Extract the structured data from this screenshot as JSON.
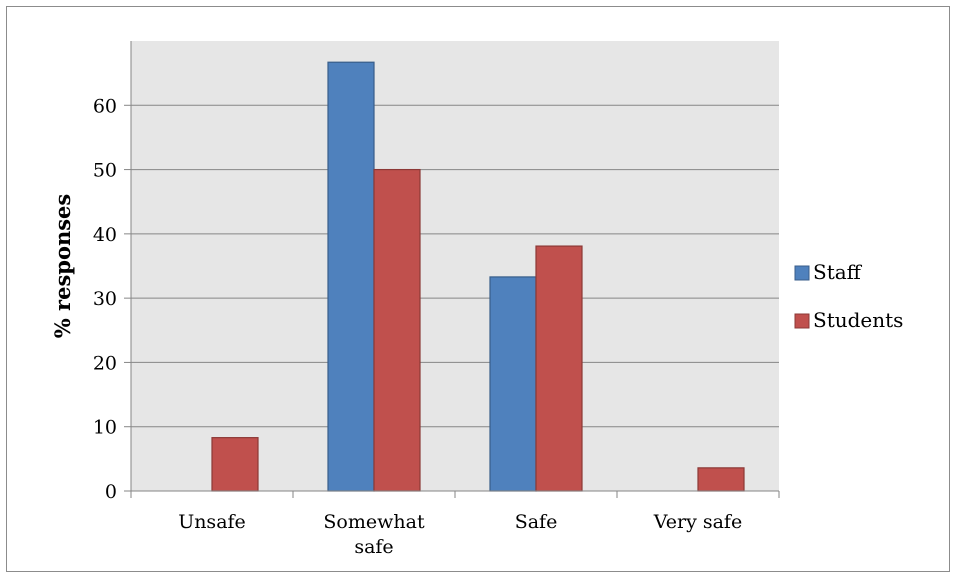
{
  "chart_data": {
    "type": "bar",
    "categories": [
      "Unsafe",
      "Somewhat safe",
      "Safe",
      "Very safe"
    ],
    "series": [
      {
        "name": "Staff",
        "values": [
          0,
          66.7,
          33.3,
          0
        ],
        "color": "#4f81bd",
        "stroke": "#385d8a"
      },
      {
        "name": "Students",
        "values": [
          8.3,
          50.0,
          38.1,
          3.6
        ],
        "color": "#c0504d",
        "stroke": "#8c3836"
      }
    ],
    "title": "",
    "xlabel": "",
    "ylabel": "% responses",
    "ylim": [
      0,
      70
    ],
    "yticks": [
      0,
      10,
      20,
      30,
      40,
      50,
      60
    ],
    "grid": true,
    "legend_position": "right",
    "plot_background": "#e6e6e6",
    "gridline_color": "#868686"
  }
}
